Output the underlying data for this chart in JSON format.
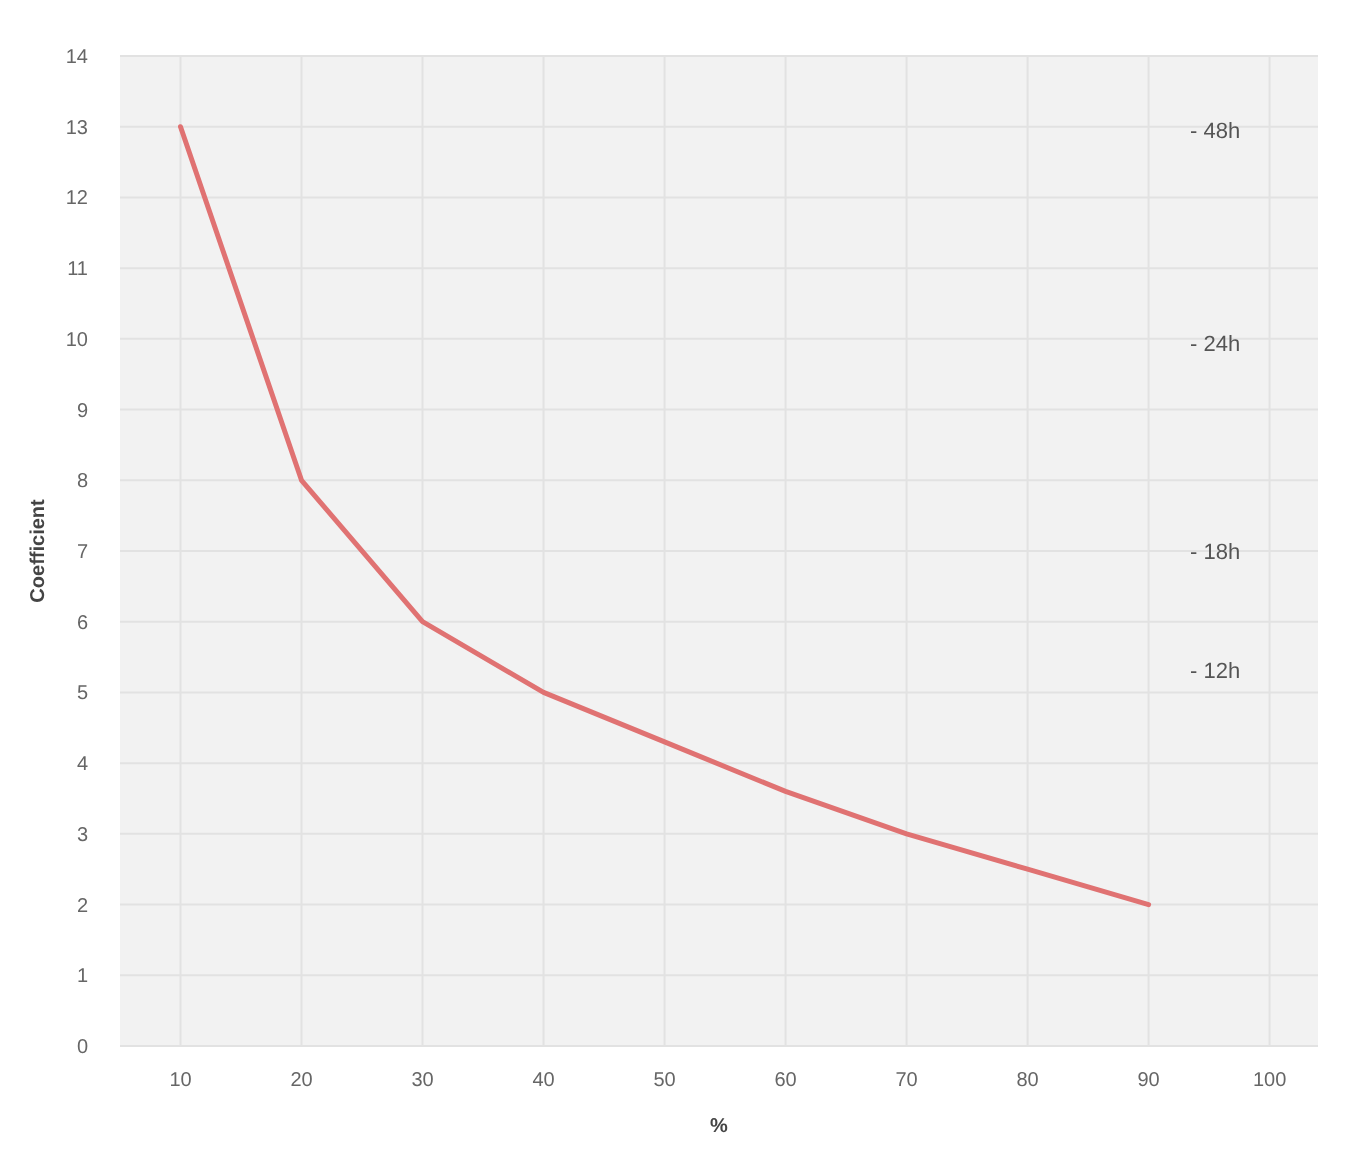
{
  "chart_data": {
    "type": "line",
    "xlabel": "%",
    "ylabel": "Coefficient",
    "x": [
      10,
      20,
      30,
      40,
      50,
      60,
      70,
      80,
      90
    ],
    "series": [
      {
        "color": "#e07272",
        "values": [
          13,
          8,
          6,
          5,
          4.3,
          3.6,
          3,
          2.5,
          2
        ]
      }
    ],
    "xlim": [
      5,
      104
    ],
    "xticks": [
      10,
      20,
      30,
      40,
      50,
      60,
      70,
      80,
      90,
      100
    ],
    "ylim": [
      0,
      14
    ],
    "yticks": [
      0,
      1,
      2,
      3,
      4,
      5,
      6,
      7,
      8,
      9,
      10,
      11,
      12,
      13,
      14
    ],
    "grid": true,
    "marker": "none",
    "line_style": "solid",
    "annotations": [
      "- 48h",
      "- 24h",
      "- 18h",
      "- 12h"
    ]
  }
}
